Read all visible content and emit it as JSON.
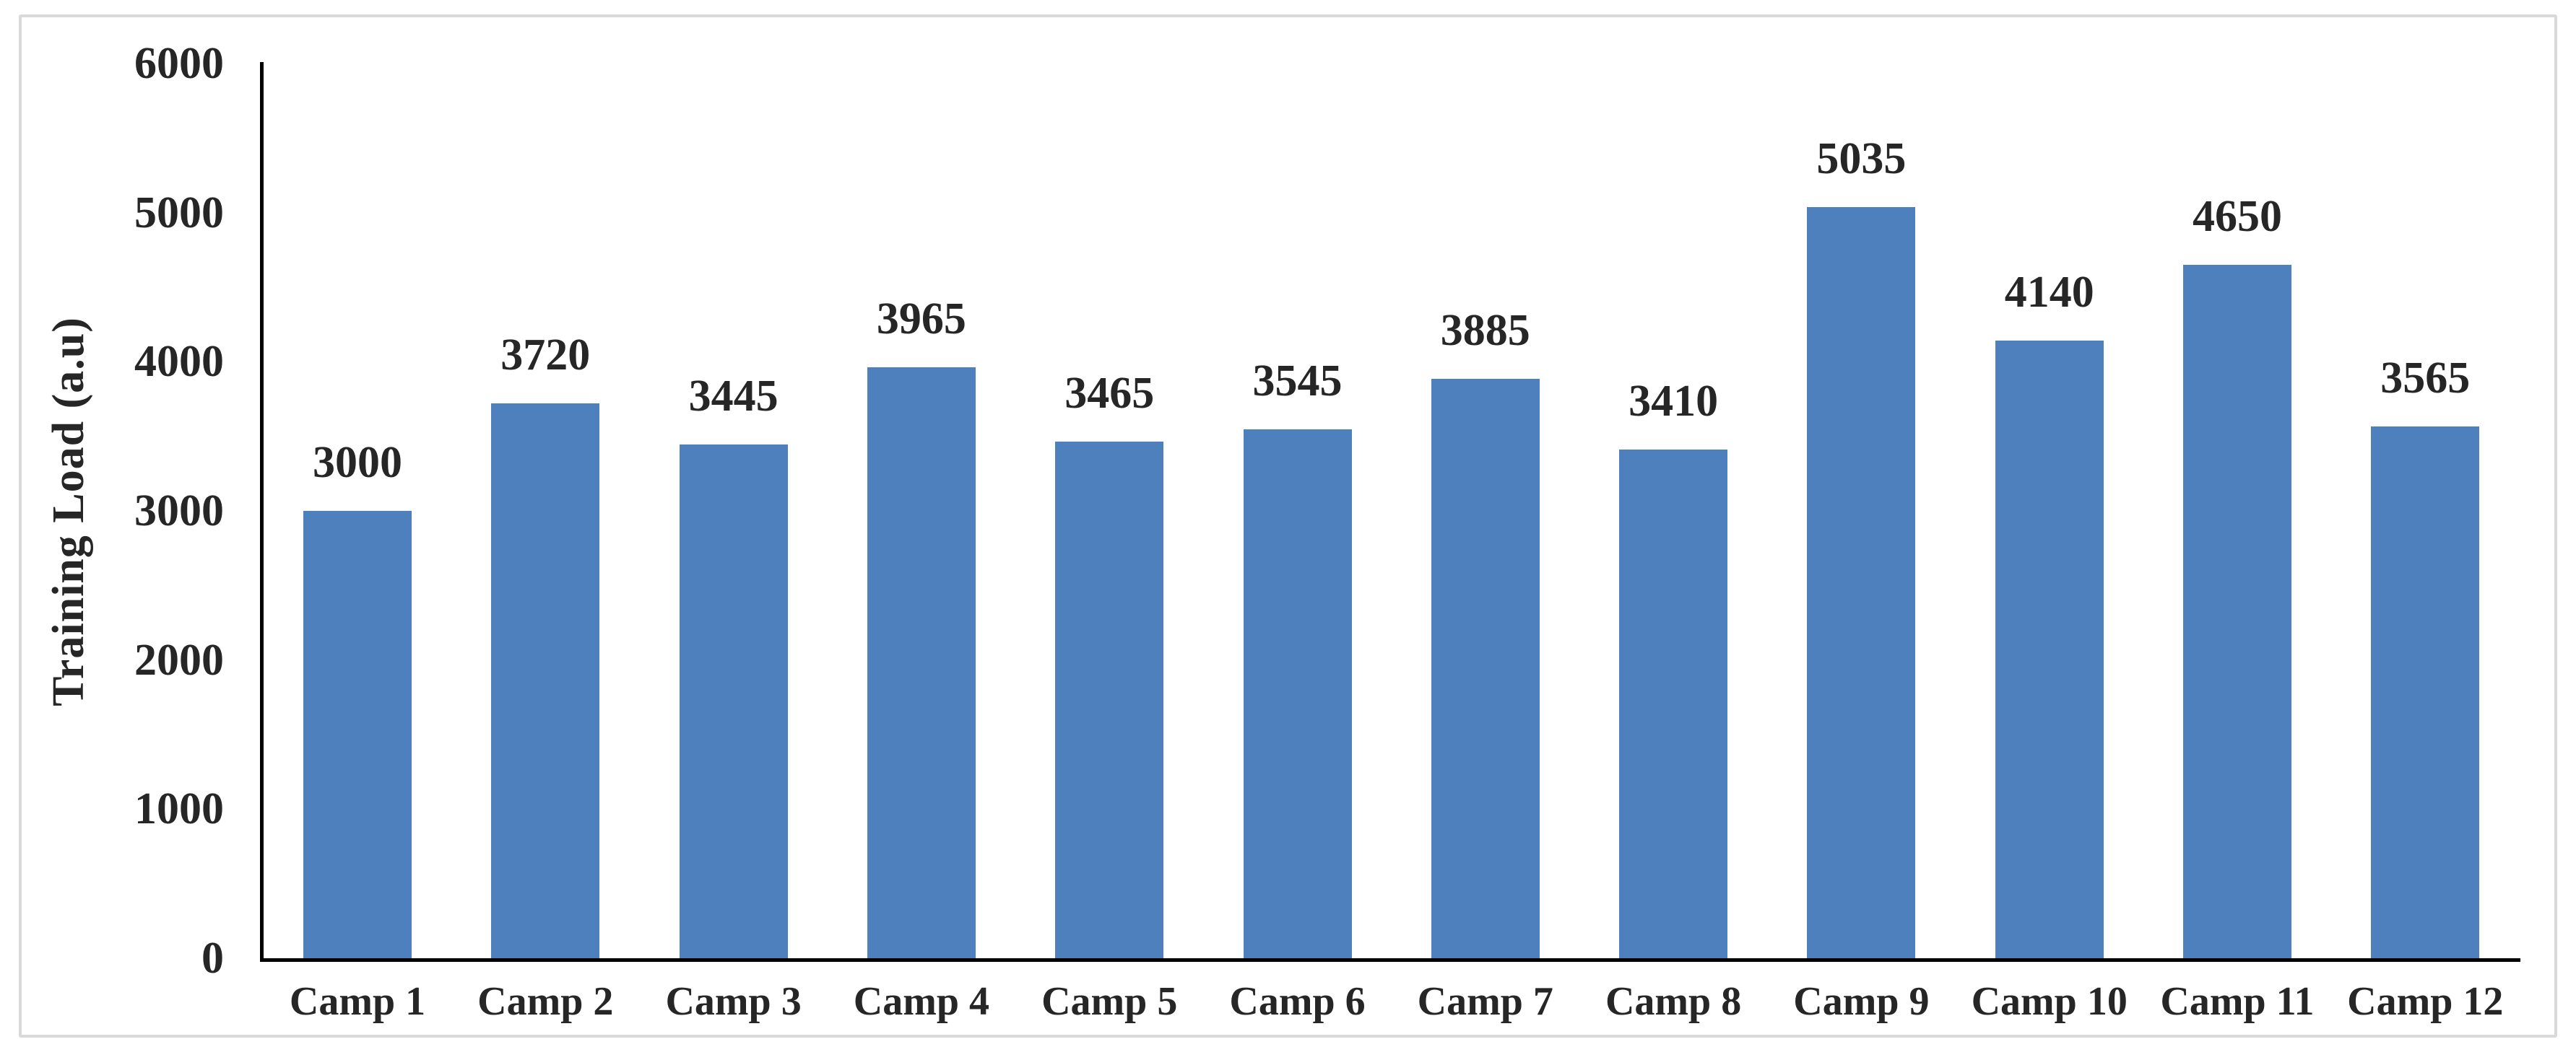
{
  "chart_data": {
    "type": "bar",
    "title": "",
    "ylabel": "Training Load (a.u)",
    "xlabel": "",
    "categories": [
      "Camp 1",
      "Camp 2",
      "Camp 3",
      "Camp 4",
      "Camp 5",
      "Camp 6",
      "Camp 7",
      "Camp 8",
      "Camp 9",
      "Camp 10",
      "Camp 11",
      "Camp 12"
    ],
    "values": [
      3000,
      3720,
      3445,
      3965,
      3465,
      3545,
      3885,
      3410,
      5035,
      4140,
      4650,
      3565
    ],
    "ylim": [
      0,
      6000
    ],
    "ytick_step": 1000,
    "grid": "off",
    "legend": "none",
    "data_labels": "above-bars",
    "bar_color": "#4e80bd",
    "axis_color": "#000000",
    "text_color": "#262626",
    "frame_border_color": "#d9d9d9"
  }
}
